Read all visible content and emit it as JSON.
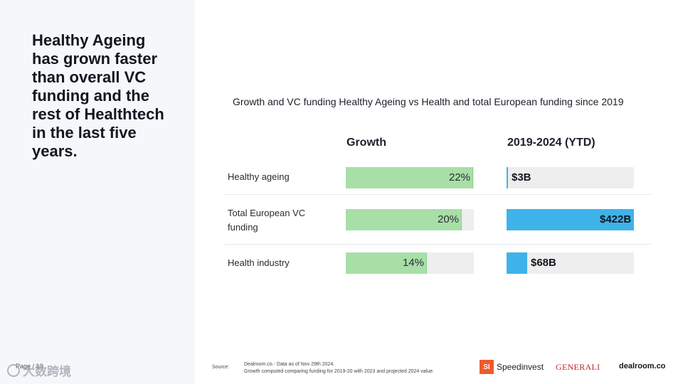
{
  "headline": "Healthy Ageing has grown faster than overall VC funding and the rest of Healthtech in the last five years.",
  "page_number": "Page / 13",
  "watermark": "大数跨境",
  "chart_data": {
    "type": "bar",
    "title": "Growth and VC funding Healthy Ageing vs Health and total European funding since 2019",
    "categories": [
      "Healthy ageing",
      "Total European VC funding",
      "Health industry"
    ],
    "series": [
      {
        "name": "Growth",
        "unit": "%",
        "values": [
          22,
          20,
          14
        ],
        "labels": [
          "22%",
          "20%",
          "14%"
        ],
        "color": "#a7dfa7"
      },
      {
        "name": "2019-2024 (YTD)",
        "unit": "$B",
        "values": [
          3,
          422,
          68
        ],
        "labels": [
          "$3B",
          "$422B",
          "$68B"
        ],
        "color": "#3db3ea"
      }
    ],
    "growth_max": 22,
    "funding_max": 422
  },
  "footer": {
    "source_label": "Source:",
    "source_line1": "Dealroom.co.- Data as of Nov 29th 2024.",
    "source_line2": "Growth computed comparing funding for 2019-20 with 2023 and projected 2024 value."
  },
  "logos": {
    "speedinvest_mark": "SI",
    "speedinvest": "Speedinvest",
    "generali": "GENERALI",
    "dealroom": "dealroom.co"
  }
}
